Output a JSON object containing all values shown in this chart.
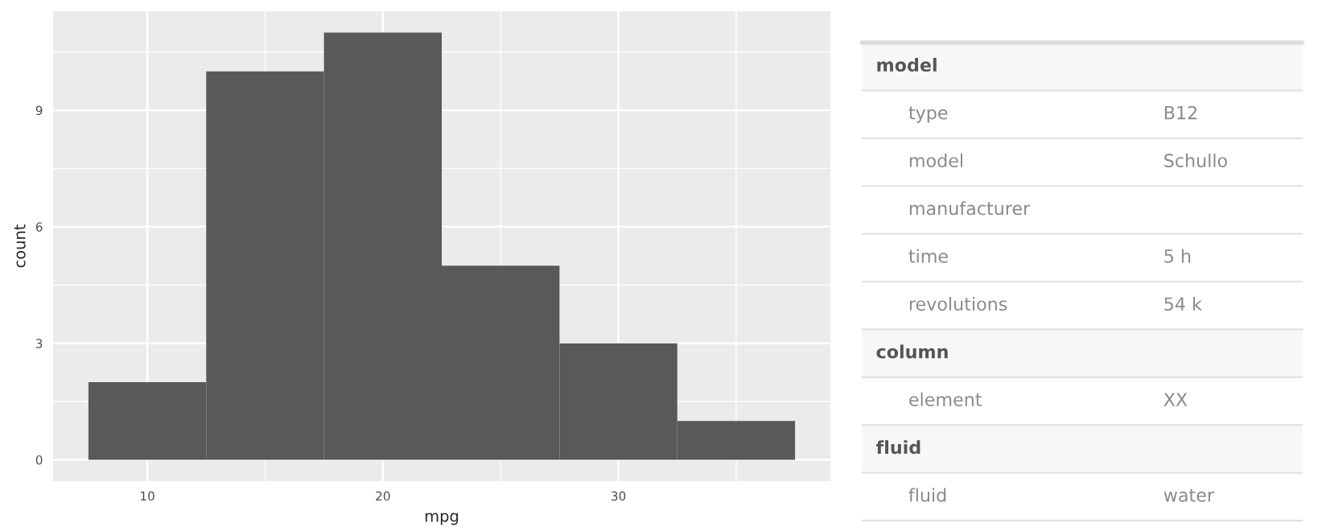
{
  "chart_data": [
    {
      "type": "histogram",
      "xlabel": "mpg",
      "ylabel": "count",
      "color": "#595959",
      "bins": [
        7.5,
        12.5,
        17.5,
        22.5,
        27.5,
        32.5,
        37.5
      ],
      "values": [
        2,
        10,
        11,
        5,
        3,
        1
      ],
      "xlim": [
        6,
        39
      ],
      "ylim": [
        -0.55,
        11.55
      ],
      "xticks": [
        10,
        20,
        30
      ],
      "yticks": [
        0,
        3,
        6,
        9
      ],
      "grid": true
    },
    {
      "type": "other",
      "cell_labels": [
        [
          "model"
        ],
        [
          "type",
          "B12"
        ],
        [
          "model",
          "Schullo"
        ],
        [
          "manufacturer",
          null
        ],
        [
          "time",
          "5 h"
        ],
        [
          "revolutions",
          "54 k"
        ],
        [
          "column"
        ],
        [
          "element",
          "XX"
        ],
        [
          "fluid"
        ],
        [
          "fluid",
          "water"
        ]
      ]
    }
  ]
}
